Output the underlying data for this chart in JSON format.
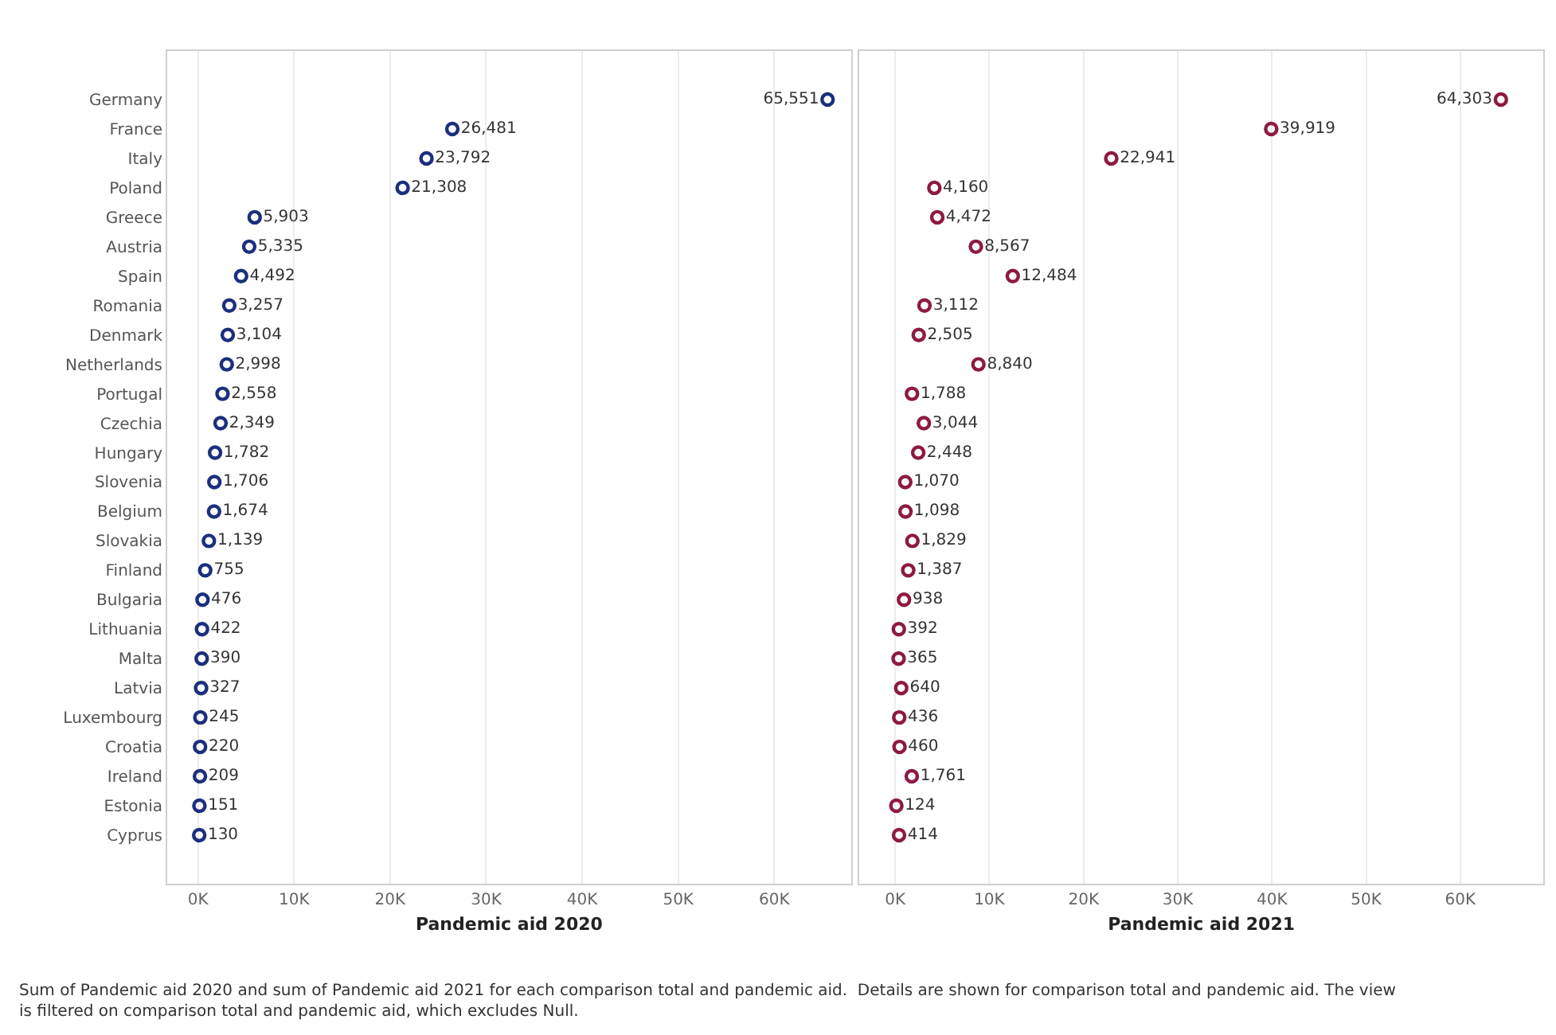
{
  "chart_data": [
    {
      "type": "scatter",
      "orientation": "horizontal",
      "xlabel": "Pandemic aid 2020",
      "categories": [
        "Germany",
        "France",
        "Italy",
        "Poland",
        "Greece",
        "Austria",
        "Spain",
        "Romania",
        "Denmark",
        "Netherlands",
        "Portugal",
        "Czechia",
        "Hungary",
        "Slovenia",
        "Belgium",
        "Slovakia",
        "Finland",
        "Bulgaria",
        "Lithuania",
        "Malta",
        "Latvia",
        "Luxembourg",
        "Croatia",
        "Ireland",
        "Estonia",
        "Cyprus"
      ],
      "series": [
        {
          "color": "#1b2f7d",
          "values": [
            65551,
            26481,
            23792,
            21308,
            5903,
            5335,
            4492,
            3257,
            3104,
            2998,
            2558,
            2349,
            1782,
            1706,
            1674,
            1139,
            755,
            476,
            422,
            390,
            327,
            245,
            220,
            209,
            151,
            130
          ],
          "value_labels": [
            "65,551",
            "26,481",
            "23,792",
            "21,308",
            "5,903",
            "5,335",
            "4,492",
            "3,257",
            "3,104",
            "2,998",
            "2,558",
            "2,349",
            "1,782",
            "1,706",
            "1,674",
            "1,139",
            "755",
            "476",
            "422",
            "390",
            "327",
            "245",
            "220",
            "209",
            "151",
            "130"
          ]
        }
      ],
      "xlim": [
        -3200,
        68000
      ],
      "xticks": [
        {
          "value": 0,
          "label": "0K"
        },
        {
          "value": 10000,
          "label": "10K"
        },
        {
          "value": 20000,
          "label": "20K"
        },
        {
          "value": 30000,
          "label": "30K"
        },
        {
          "value": 40000,
          "label": "40K"
        },
        {
          "value": 50000,
          "label": "50K"
        },
        {
          "value": 60000,
          "label": "60K"
        }
      ],
      "grid": "x",
      "marker": "circle",
      "annotations": [
        "Sum of Pandemic aid 2020 and sum of Pandemic aid 2021 for each comparison total and pandemic aid.  Details are shown for comparison total and pandemic aid. The view is filtered on comparison total and pandemic aid, which excludes Null."
      ]
    },
    {
      "type": "scatter",
      "orientation": "horizontal",
      "xlabel": "Pandemic aid 2021",
      "tick_labels": "x",
      "categories": [
        "Germany",
        "France",
        "Italy",
        "Poland",
        "Greece",
        "Austria",
        "Spain",
        "Romania",
        "Denmark",
        "Netherlands",
        "Portugal",
        "Czechia",
        "Hungary",
        "Slovenia",
        "Belgium",
        "Slovakia",
        "Finland",
        "Bulgaria",
        "Lithuania",
        "Malta",
        "Latvia",
        "Luxembourg",
        "Croatia",
        "Ireland",
        "Estonia",
        "Cyprus"
      ],
      "series": [
        {
          "color": "#8e1a3c",
          "values": [
            64303,
            39919,
            22941,
            4160,
            4472,
            8567,
            12484,
            3112,
            2505,
            8840,
            1788,
            3044,
            2448,
            1070,
            1098,
            1829,
            1387,
            938,
            392,
            365,
            640,
            436,
            460,
            1761,
            124,
            414
          ],
          "value_labels": [
            "64,303",
            "39,919",
            "22,941",
            "4,160",
            "4,472",
            "8,567",
            "12,484",
            "3,112",
            "2,505",
            "8,840",
            "1,788",
            "3,044",
            "2,448",
            "1,070",
            "1,098",
            "1,829",
            "1,387",
            "938",
            "392",
            "365",
            "640",
            "436",
            "460",
            "1,761",
            "124",
            "414"
          ]
        }
      ],
      "xlim": [
        -3800,
        68800
      ],
      "xticks": [
        {
          "value": 0,
          "label": "0K"
        },
        {
          "value": 10000,
          "label": "10K"
        },
        {
          "value": 20000,
          "label": "20K"
        },
        {
          "value": 30000,
          "label": "30K"
        },
        {
          "value": 40000,
          "label": "40K"
        },
        {
          "value": 50000,
          "label": "50K"
        },
        {
          "value": 60000,
          "label": "60K"
        }
      ],
      "grid": "x",
      "marker": "circle"
    }
  ]
}
